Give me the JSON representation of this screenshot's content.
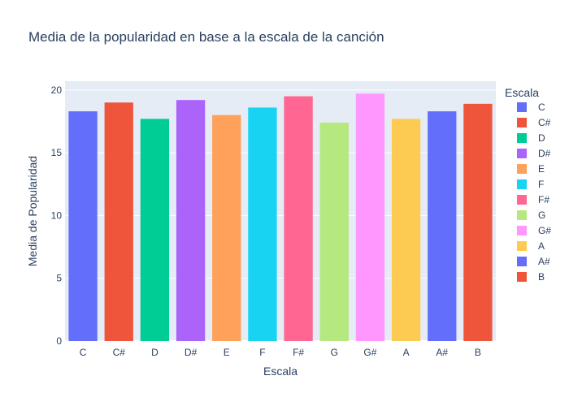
{
  "chart_data": {
    "type": "bar",
    "title": "Media de la popularidad en base a la escala de la canción",
    "xlabel": "Escala",
    "ylabel": "Media de Popularidad",
    "categories": [
      "C",
      "C#",
      "D",
      "D#",
      "E",
      "F",
      "F#",
      "G",
      "G#",
      "A",
      "A#",
      "B"
    ],
    "values": [
      18.3,
      19.0,
      17.7,
      19.2,
      18.0,
      18.6,
      19.5,
      17.4,
      19.7,
      17.7,
      18.3,
      18.9
    ],
    "colors": [
      "#636efa",
      "#EF553B",
      "#00cc96",
      "#ab63fa",
      "#FFA15A",
      "#19d3f3",
      "#FF6692",
      "#B6E880",
      "#FF97FF",
      "#FECB52",
      "#636efa",
      "#EF553B"
    ],
    "ylim": [
      0,
      20.7
    ],
    "yticks": [
      0,
      5,
      10,
      15,
      20
    ],
    "grid": true,
    "plot_background": "#e5ecf6",
    "legend": {
      "title": "Escala",
      "placement": "right",
      "entries": [
        "C",
        "C#",
        "D",
        "D#",
        "E",
        "F",
        "F#",
        "G",
        "G#",
        "A",
        "A#",
        "B"
      ]
    }
  }
}
